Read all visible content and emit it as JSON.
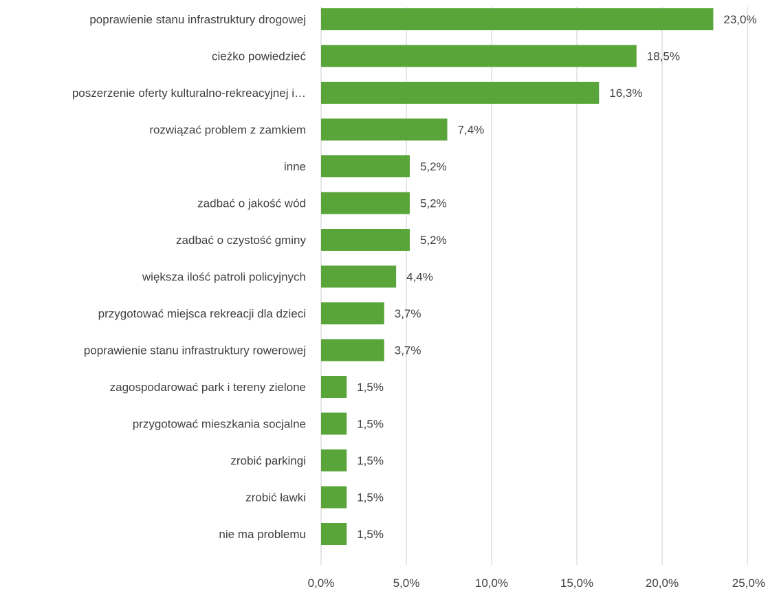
{
  "chart_data": {
    "type": "bar",
    "orientation": "horizontal",
    "categories": [
      "poprawienie stanu infrastruktury drogowej",
      "cieżko powiedzieć",
      "poszerzenie oferty kulturalno-rekreacyjnej i…",
      "rozwiązać problem z zamkiem",
      "inne",
      "zadbać o jakość wód",
      "zadbać o czystość gminy",
      "większa ilość patroli policyjnych",
      "przygotować miejsca rekreacji dla dzieci",
      "poprawienie stanu infrastruktury rowerowej",
      "zagospodarować park i tereny zielone",
      "przygotować mieszkania socjalne",
      "zrobić parkingi",
      "zrobić ławki",
      "nie ma problemu"
    ],
    "values": [
      23.0,
      18.5,
      16.3,
      7.4,
      5.2,
      5.2,
      5.2,
      4.4,
      3.7,
      3.7,
      1.5,
      1.5,
      1.5,
      1.5,
      1.5
    ],
    "value_labels": [
      "23,0%",
      "18,5%",
      "16,3%",
      "7,4%",
      "5,2%",
      "5,2%",
      "5,2%",
      "4,4%",
      "3,7%",
      "3,7%",
      "1,5%",
      "1,5%",
      "1,5%",
      "1,5%",
      "1,5%"
    ],
    "xlim": [
      0,
      25
    ],
    "x_ticks": [
      0,
      5,
      10,
      15,
      20,
      25
    ],
    "x_tick_labels": [
      "0,0%",
      "5,0%",
      "10,0%",
      "15,0%",
      "20,0%",
      "25,0%"
    ],
    "grid": "vertical",
    "legend": "none",
    "bar_color": "#5aa53a",
    "title": "",
    "xlabel": "",
    "ylabel": ""
  }
}
